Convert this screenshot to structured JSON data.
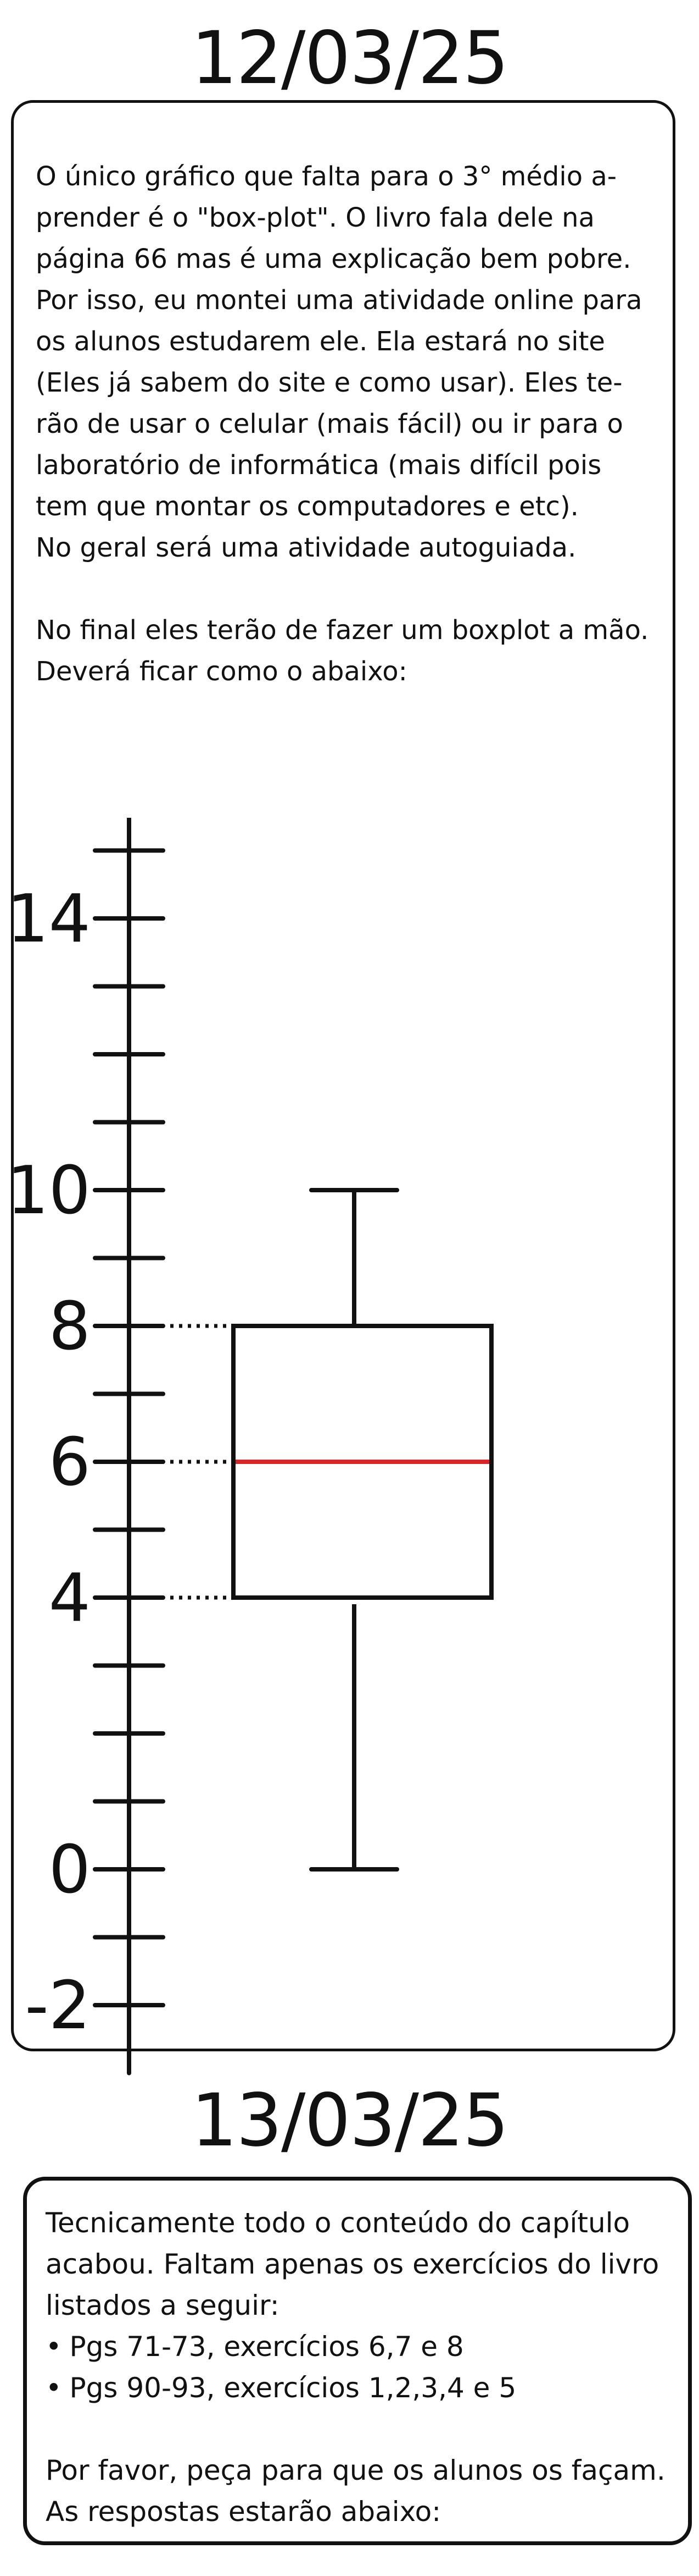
{
  "section_1": {
    "date": "12/03/25",
    "paragraph_1": "O único gráfico que falta para o 3° médio a-\nprender é o \"box-plot\". O livro fala dele na\npágina 66 mas é uma explicação bem pobre.\nPor isso, eu montei uma atividade online para\nos alunos estudarem ele. Ela estará no site\n(Eles já sabem do site e como usar). Eles te-\nrão de usar o celular (mais fácil) ou ir para o\nlaboratório de informática (mais difícil pois\ntem que montar os computadores e etc).\nNo geral será uma atividade autoguiada.",
    "paragraph_2": "No final eles terão de fazer um boxplot a mão.\nDeverá ficar como o abaixo:"
  },
  "chart_data": {
    "type": "boxplot",
    "orientation": "vertical",
    "axis": {
      "tick_step": 1,
      "range": [
        -3,
        15.5
      ],
      "labeled_ticks": [
        {
          "value": 14,
          "label": "14"
        },
        {
          "value": 10,
          "label": "10"
        },
        {
          "value": 8,
          "label": "8"
        },
        {
          "value": 6,
          "label": "6"
        },
        {
          "value": 4,
          "label": "4"
        },
        {
          "value": 0,
          "label": "0"
        },
        {
          "value": -2,
          "label": "-2"
        }
      ]
    },
    "box": {
      "min": 0,
      "q1": 4,
      "median": 6,
      "q3": 8,
      "max": 10
    },
    "guide_lines": [
      4,
      6,
      8
    ],
    "colors": {
      "ink": "#111111",
      "median": "#d62728"
    }
  },
  "section_2": {
    "date": "13/03/25",
    "paragraph_1": "Tecnicamente todo o conteúdo do capítulo\nacabou. Faltam apenas os exercícios do livro\nlistados a seguir:",
    "bullets": [
      "Pgs 71-73, exercícios 6,7 e 8",
      "Pgs 90-93, exercícios 1,2,3,4 e 5"
    ],
    "paragraph_2": "Por favor, peça para que os alunos os façam.\nAs respostas estarão abaixo:"
  }
}
